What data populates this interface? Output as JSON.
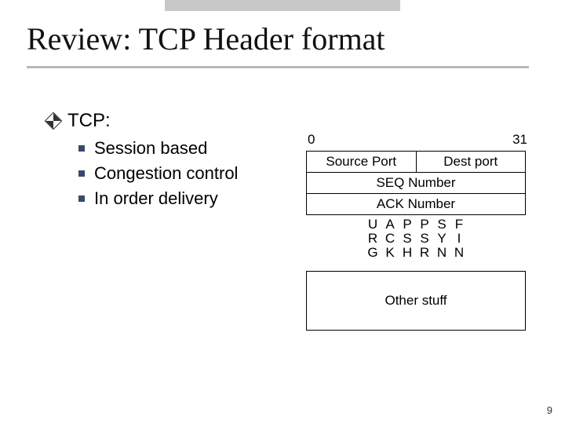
{
  "title": "Review:  TCP Header format",
  "bullets": {
    "main": "TCP:",
    "subs": [
      "Session based",
      "Congestion control",
      "In order delivery"
    ]
  },
  "diagram": {
    "bit_left": "0",
    "bit_right": "31",
    "row1": {
      "left": "Source Port",
      "right": "Dest port"
    },
    "row2": "SEQ Number",
    "row3": "ACK Number",
    "flags": [
      [
        "U",
        "R",
        "G"
      ],
      [
        "A",
        "C",
        "K"
      ],
      [
        "P",
        "S",
        "H"
      ],
      [
        "P",
        "S",
        "R"
      ],
      [
        "S",
        "Y",
        "N"
      ],
      [
        "F",
        "I",
        "N"
      ]
    ],
    "other": "Other stuff"
  },
  "page_number": "9",
  "colors": {
    "top_bar": "#c8c8c8",
    "underline": "#b8b8b8",
    "square": "#374a6a",
    "border": "#000000",
    "background": "#ffffff"
  }
}
